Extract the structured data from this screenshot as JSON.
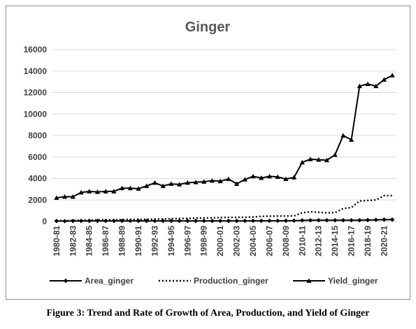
{
  "caption": "Figure 3: Trend and Rate of Growth of Area, Production, and Yield of Ginger",
  "chart_data": {
    "type": "line",
    "title": "Ginger",
    "xlabel": "",
    "ylabel": "",
    "ylim": [
      0,
      16000
    ],
    "yticks": [
      0,
      2000,
      4000,
      6000,
      8000,
      10000,
      12000,
      14000,
      16000
    ],
    "ytick_labels": [
      "0",
      "2000",
      "4000",
      "6000",
      "8000",
      "10000",
      "12000",
      "14000",
      "16000"
    ],
    "grid": true,
    "legend_position": "bottom",
    "categories": [
      "1980-81",
      "1981-82",
      "1982-83",
      "1983-84",
      "1984-85",
      "1985-86",
      "1986-87",
      "1987-88",
      "1988-89",
      "1989-90",
      "1990-91",
      "1991-92",
      "1992-93",
      "1993-94",
      "1994-95",
      "1995-96",
      "1996-97",
      "1997-98",
      "1998-99",
      "1999-00",
      "2000-01",
      "2001-02",
      "2002-03",
      "2003-04",
      "2004-05",
      "2005-06",
      "2006-07",
      "2007-08",
      "2008-09",
      "2009-10",
      "2010-11",
      "2011-12",
      "2012-13",
      "2013-14",
      "2014-15",
      "2015-16",
      "2016-17",
      "2017-18",
      "2018-19",
      "2019-20",
      "2020-21",
      "2021-22"
    ],
    "xtick_labels": [
      "1980-81",
      "1982-83",
      "1984-85",
      "1986-87",
      "1988-89",
      "1990-91",
      "1992-93",
      "1994-95",
      "1996-97",
      "1998-99",
      "2000-01",
      "2002-03",
      "2004-05",
      "2006-07",
      "2008-09",
      "2010-11",
      "2012-13",
      "2014-15",
      "2016-17",
      "2018-19",
      "2020-21"
    ],
    "series": [
      {
        "name": "Area_ginger",
        "color": "#000000",
        "line_style": "solid",
        "marker": "diamond",
        "values": [
          40,
          30,
          40,
          50,
          50,
          50,
          50,
          50,
          50,
          50,
          50,
          50,
          50,
          50,
          50,
          50,
          50,
          50,
          50,
          50,
          50,
          50,
          50,
          50,
          60,
          60,
          60,
          60,
          60,
          70,
          100,
          110,
          110,
          110,
          110,
          110,
          110,
          110,
          130,
          150,
          170,
          170
        ]
      },
      {
        "name": "Production_ginger",
        "color": "#000000",
        "line_style": "dotted",
        "marker": "none",
        "values": [
          80,
          70,
          90,
          110,
          130,
          140,
          150,
          150,
          170,
          180,
          190,
          200,
          220,
          230,
          250,
          270,
          280,
          300,
          320,
          340,
          360,
          380,
          380,
          390,
          420,
          470,
          490,
          500,
          500,
          520,
          800,
          900,
          850,
          800,
          820,
          1200,
          1300,
          1900,
          1950,
          2000,
          2400,
          2400
        ]
      },
      {
        "name": "Yield_ginger",
        "color": "#000000",
        "line_style": "solid",
        "marker": "triangle",
        "values": [
          2200,
          2300,
          2300,
          2700,
          2800,
          2750,
          2800,
          2800,
          3100,
          3100,
          3050,
          3300,
          3600,
          3300,
          3500,
          3450,
          3600,
          3650,
          3700,
          3800,
          3750,
          3950,
          3500,
          3900,
          4200,
          4050,
          4200,
          4150,
          3950,
          4100,
          5500,
          5800,
          5750,
          5700,
          6200,
          8000,
          7600,
          12600,
          12800,
          12600,
          13200,
          13600
        ]
      }
    ]
  }
}
